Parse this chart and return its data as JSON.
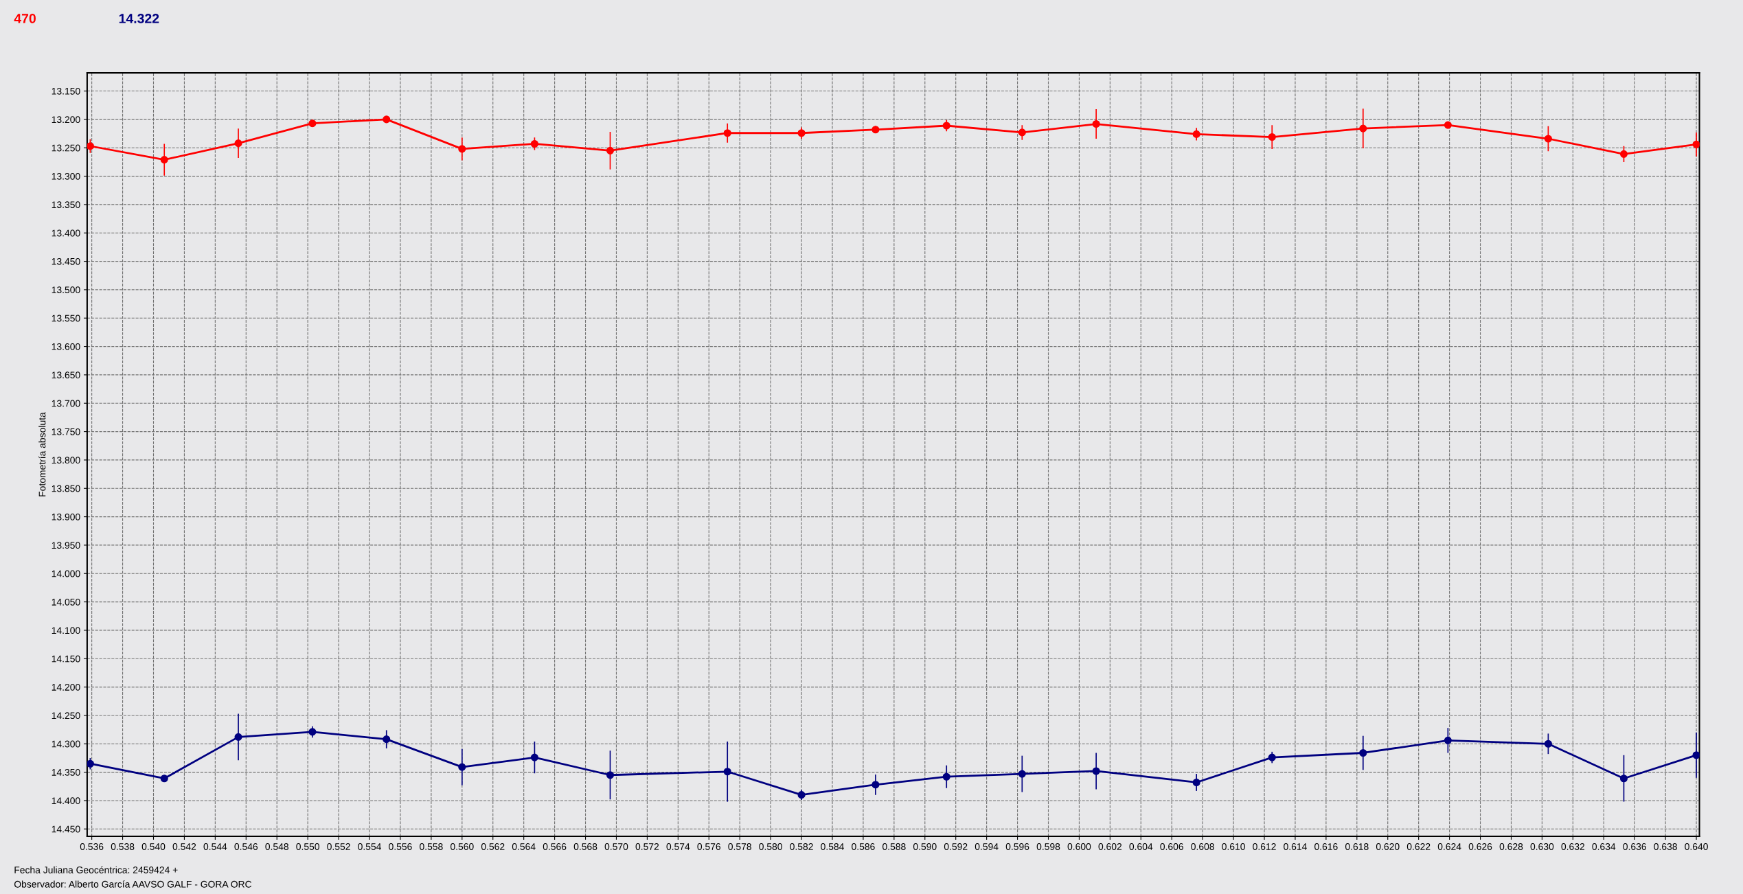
{
  "chart_data": {
    "type": "line",
    "ylabel": "Fotometría absoluta",
    "annotations": [
      "470",
      "14.322",
      "Fecha Juliana Geocéntrica: 2459424 +",
      "Observador: Alberto García AAVSO GALF - GORA ORC"
    ],
    "series": [
      {
        "color": "#ff0000",
        "x": [
          0.5359,
          0.5407,
          0.5455,
          0.5503,
          0.5551,
          0.56,
          0.5647,
          0.5696,
          0.5772,
          0.582,
          0.5868,
          0.5914,
          0.5963,
          0.6011,
          0.6076,
          0.6125,
          0.6184,
          0.6239,
          0.6304,
          0.6353,
          0.64
        ],
        "values": [
          13.247,
          13.271,
          13.242,
          13.207,
          13.2,
          13.252,
          13.243,
          13.255,
          13.224,
          13.224,
          13.218,
          13.211,
          13.223,
          13.208,
          13.226,
          13.231,
          13.216,
          13.21,
          13.234,
          13.261,
          13.244
        ],
        "errors": [
          0.012,
          0.028,
          0.026,
          0.006,
          0.003,
          0.02,
          0.011,
          0.033,
          0.017,
          0.01,
          0.006,
          0.01,
          0.013,
          0.026,
          0.011,
          0.021,
          0.035,
          0.003,
          0.022,
          0.014,
          0.021
        ]
      },
      {
        "color": "#000080",
        "x": [
          0.5359,
          0.5407,
          0.5455,
          0.5503,
          0.5551,
          0.56,
          0.5647,
          0.5696,
          0.5772,
          0.582,
          0.5868,
          0.5914,
          0.5963,
          0.6011,
          0.6076,
          0.6125,
          0.6184,
          0.6239,
          0.6304,
          0.6353,
          0.64
        ],
        "values": [
          14.335,
          14.361,
          14.288,
          14.279,
          14.292,
          14.341,
          14.324,
          14.355,
          14.349,
          14.39,
          14.372,
          14.358,
          14.353,
          14.348,
          14.368,
          14.324,
          14.316,
          14.294,
          14.3,
          14.361,
          14.32
        ],
        "errors": [
          0.01,
          0.005,
          0.041,
          0.01,
          0.016,
          0.032,
          0.028,
          0.043,
          0.053,
          0.009,
          0.018,
          0.02,
          0.032,
          0.032,
          0.015,
          0.01,
          0.03,
          0.022,
          0.018,
          0.041,
          0.04
        ]
      }
    ],
    "xlim": [
      0.5357,
      0.6402
    ],
    "ylim": [
      14.463,
      13.118
    ],
    "xticks": [
      {
        "value": 0.536,
        "label": "0.536"
      },
      {
        "value": 0.538,
        "label": "0.538"
      },
      {
        "value": 0.54,
        "label": "0.540"
      },
      {
        "value": 0.542,
        "label": "0.542"
      },
      {
        "value": 0.544,
        "label": "0.544"
      },
      {
        "value": 0.546,
        "label": "0.546"
      },
      {
        "value": 0.548,
        "label": "0.548"
      },
      {
        "value": 0.55,
        "label": "0.550"
      },
      {
        "value": 0.552,
        "label": "0.552"
      },
      {
        "value": 0.554,
        "label": "0.554"
      },
      {
        "value": 0.556,
        "label": "0.556"
      },
      {
        "value": 0.558,
        "label": "0.558"
      },
      {
        "value": 0.56,
        "label": "0.560"
      },
      {
        "value": 0.562,
        "label": "0.562"
      },
      {
        "value": 0.564,
        "label": "0.564"
      },
      {
        "value": 0.566,
        "label": "0.566"
      },
      {
        "value": 0.568,
        "label": "0.568"
      },
      {
        "value": 0.57,
        "label": "0.570"
      },
      {
        "value": 0.572,
        "label": "0.572"
      },
      {
        "value": 0.574,
        "label": "0.574"
      },
      {
        "value": 0.576,
        "label": "0.576"
      },
      {
        "value": 0.578,
        "label": "0.578"
      },
      {
        "value": 0.58,
        "label": "0.580"
      },
      {
        "value": 0.582,
        "label": "0.582"
      },
      {
        "value": 0.584,
        "label": "0.584"
      },
      {
        "value": 0.586,
        "label": "0.586"
      },
      {
        "value": 0.588,
        "label": "0.588"
      },
      {
        "value": 0.59,
        "label": "0.590"
      },
      {
        "value": 0.592,
        "label": "0.592"
      },
      {
        "value": 0.594,
        "label": "0.594"
      },
      {
        "value": 0.596,
        "label": "0.596"
      },
      {
        "value": 0.598,
        "label": "0.598"
      },
      {
        "value": 0.6,
        "label": "0.600"
      },
      {
        "value": 0.602,
        "label": "0.602"
      },
      {
        "value": 0.604,
        "label": "0.604"
      },
      {
        "value": 0.606,
        "label": "0.606"
      },
      {
        "value": 0.608,
        "label": "0.608"
      },
      {
        "value": 0.61,
        "label": "0.610"
      },
      {
        "value": 0.612,
        "label": "0.612"
      },
      {
        "value": 0.614,
        "label": "0.614"
      },
      {
        "value": 0.616,
        "label": "0.616"
      },
      {
        "value": 0.618,
        "label": "0.618"
      },
      {
        "value": 0.62,
        "label": "0.620"
      },
      {
        "value": 0.622,
        "label": "0.622"
      },
      {
        "value": 0.624,
        "label": "0.624"
      },
      {
        "value": 0.626,
        "label": "0.626"
      },
      {
        "value": 0.628,
        "label": "0.628"
      },
      {
        "value": 0.63,
        "label": "0.630"
      },
      {
        "value": 0.632,
        "label": "0.632"
      },
      {
        "value": 0.634,
        "label": "0.634"
      },
      {
        "value": 0.636,
        "label": "0.636"
      },
      {
        "value": 0.638,
        "label": "0.638"
      },
      {
        "value": 0.64,
        "label": "0.640"
      }
    ],
    "yticks": [
      {
        "value": 13.15,
        "label": "13.150"
      },
      {
        "value": 13.2,
        "label": "13.200"
      },
      {
        "value": 13.25,
        "label": "13.250"
      },
      {
        "value": 13.3,
        "label": "13.300"
      },
      {
        "value": 13.35,
        "label": "13.350"
      },
      {
        "value": 13.4,
        "label": "13.400"
      },
      {
        "value": 13.45,
        "label": "13.450"
      },
      {
        "value": 13.5,
        "label": "13.500"
      },
      {
        "value": 13.55,
        "label": "13.550"
      },
      {
        "value": 13.6,
        "label": "13.600"
      },
      {
        "value": 13.65,
        "label": "13.650"
      },
      {
        "value": 13.7,
        "label": "13.700"
      },
      {
        "value": 13.75,
        "label": "13.750"
      },
      {
        "value": 13.8,
        "label": "13.800"
      },
      {
        "value": 13.85,
        "label": "13.850"
      },
      {
        "value": 13.9,
        "label": "13.900"
      },
      {
        "value": 13.95,
        "label": "13.950"
      },
      {
        "value": 14.0,
        "label": "14.000"
      },
      {
        "value": 14.05,
        "label": "14.050"
      },
      {
        "value": 14.1,
        "label": "14.100"
      },
      {
        "value": 14.15,
        "label": "14.150"
      },
      {
        "value": 14.2,
        "label": "14.200"
      },
      {
        "value": 14.25,
        "label": "14.250"
      },
      {
        "value": 14.3,
        "label": "14.300"
      },
      {
        "value": 14.35,
        "label": "14.350"
      },
      {
        "value": 14.4,
        "label": "14.400"
      },
      {
        "value": 14.45,
        "label": "14.450"
      }
    ],
    "grid": true,
    "marker": "circle",
    "line_style": "solid"
  }
}
